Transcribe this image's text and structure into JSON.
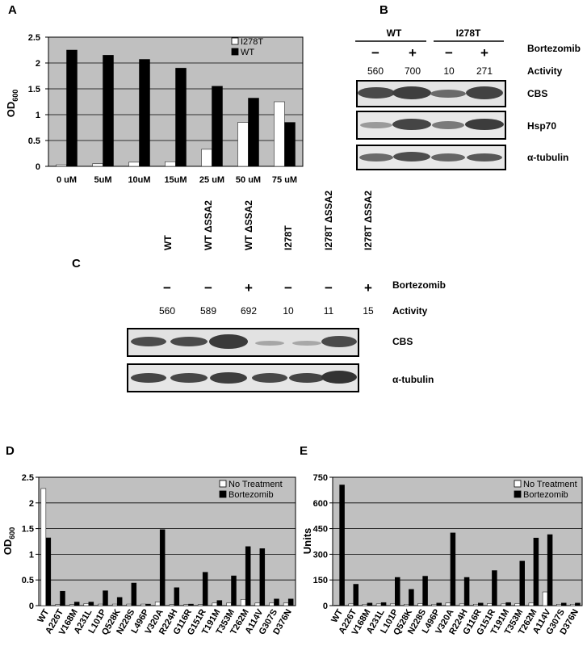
{
  "panels": {
    "A": "A",
    "B": "B",
    "C": "C",
    "D": "D",
    "E": "E"
  },
  "colors": {
    "plot_bg": "#c0c0c0",
    "bar_dark": "#000000",
    "bar_light": "#ffffff",
    "grid": "#000000"
  },
  "panel_b": {
    "groups": [
      "WT",
      "I278T"
    ],
    "treatment_label": "Bortezomib",
    "signs": [
      "−",
      "+",
      "−",
      "+"
    ],
    "activity_label": "Activity",
    "activity": [
      "560",
      "700",
      "10",
      "271"
    ],
    "blots": [
      "CBS",
      "Hsp70",
      "α-tubulin"
    ]
  },
  "panel_c": {
    "lanes": [
      "WT",
      "WT ΔSSA2",
      "WT ΔSSA2",
      "I278T",
      "I278T ΔSSA2",
      "I278T ΔSSA2"
    ],
    "treatment_label": "Bortezomib",
    "signs": [
      "−",
      "−",
      "+",
      "−",
      "−",
      "+"
    ],
    "activity_label": "Activity",
    "activity": [
      "560",
      "589",
      "692",
      "10",
      "11",
      "15"
    ],
    "blots": [
      "CBS",
      "α-tubulin"
    ]
  },
  "chart_data": [
    {
      "id": "A",
      "type": "bar",
      "categories": [
        "0 uM",
        "5uM",
        "10uM",
        "15uM",
        "25 uM",
        "50 uM",
        "75 uM"
      ],
      "series": [
        {
          "name": "I278T",
          "color": "#ffffff",
          "values": [
            0.03,
            0.05,
            0.08,
            0.09,
            0.33,
            0.85,
            1.25
          ]
        },
        {
          "name": "WT",
          "color": "#000000",
          "values": [
            2.25,
            2.15,
            2.07,
            1.9,
            1.55,
            1.32,
            0.85
          ]
        }
      ],
      "ylabel": "OD",
      "ylabel_sub": "600",
      "ylim": [
        0,
        2.5
      ],
      "yticks": [
        0,
        0.5,
        1,
        1.5,
        2,
        2.5
      ],
      "ytick_labels": [
        "0",
        "0.5",
        "1",
        "1.5",
        "2",
        "2.5"
      ],
      "grid": true,
      "legend": "top-right"
    },
    {
      "id": "D",
      "type": "bar",
      "categories": [
        "WT",
        "A226T",
        "V168M",
        "A231L",
        "L101P",
        "Q528K",
        "N228S",
        "L496P",
        "V320A",
        "R224H",
        "G116R",
        "G151R",
        "T191M",
        "T353M",
        "T262M",
        "A114V",
        "G307S",
        "D376N"
      ],
      "series": [
        {
          "name": "No Treatment",
          "color": "#ffffff",
          "values": [
            2.28,
            0.02,
            0.02,
            0.04,
            0.03,
            0.03,
            0.03,
            0.03,
            0.07,
            0.02,
            0.02,
            0.02,
            0.05,
            0.05,
            0.12,
            0.05,
            0.05,
            0.05
          ]
        },
        {
          "name": "Bortezomib",
          "color": "#000000",
          "values": [
            1.32,
            0.28,
            0.07,
            0.07,
            0.29,
            0.16,
            0.44,
            0.03,
            1.48,
            0.35,
            0.03,
            0.65,
            0.1,
            0.58,
            1.15,
            1.11,
            0.13,
            0.13
          ]
        }
      ],
      "ylabel": "OD",
      "ylabel_sub": "600",
      "ylim": [
        0,
        2.5
      ],
      "yticks": [
        0,
        0.5,
        1,
        1.5,
        2,
        2.5
      ],
      "ytick_labels": [
        "0",
        "0.5",
        "1",
        "1.5",
        "2",
        "2.5"
      ],
      "grid": true,
      "legend": "top-right"
    },
    {
      "id": "E",
      "type": "bar",
      "categories": [
        "WT",
        "A226T",
        "V168M",
        "A231L",
        "L101P",
        "Q528K",
        "N228S",
        "L496P",
        "V320A",
        "R224H",
        "G116R",
        "G151R",
        "T191M",
        "T353M",
        "T262M",
        "A114V",
        "G307S",
        "D376N"
      ],
      "series": [
        {
          "name": "No Treatment",
          "color": "#ffffff",
          "values": [
            3,
            10,
            8,
            10,
            10,
            8,
            12,
            8,
            15,
            10,
            8,
            12,
            10,
            12,
            15,
            80,
            8,
            8
          ]
        },
        {
          "name": "Bortezomib",
          "color": "#000000",
          "values": [
            705,
            125,
            15,
            18,
            165,
            95,
            172,
            15,
            425,
            165,
            15,
            205,
            18,
            260,
            395,
            415,
            15,
            15
          ]
        }
      ],
      "ylabel": "Units",
      "ylim": [
        0,
        750
      ],
      "yticks": [
        0,
        150,
        300,
        450,
        600,
        750
      ],
      "ytick_labels": [
        "0",
        "150",
        "300",
        "450",
        "600",
        "750"
      ],
      "grid": true,
      "legend": "top-right"
    }
  ]
}
